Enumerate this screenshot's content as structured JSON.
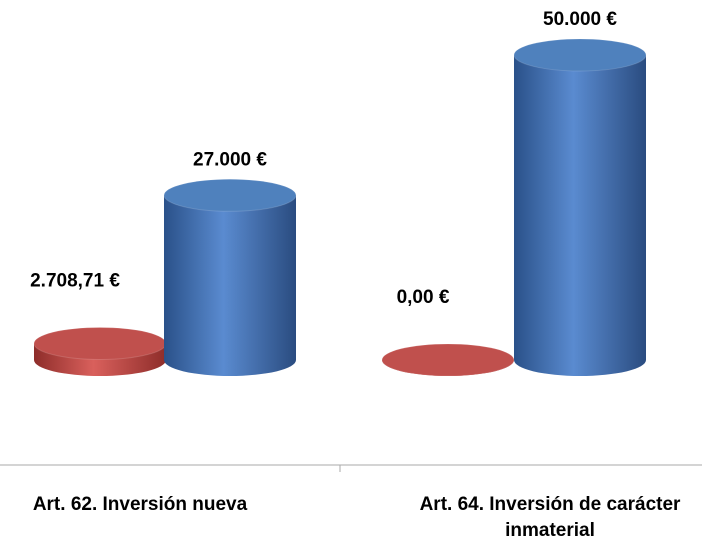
{
  "chart_data": {
    "type": "cylinder",
    "categories": [
      "Art. 62. Inversión nueva",
      "Art. 64. Inversión de carácter inmaterial"
    ],
    "series": [
      {
        "color": "#c0504d",
        "values": [
          2708.71,
          0
        ],
        "value_labels": [
          "2.708,71 €",
          "0,00 €"
        ]
      },
      {
        "color": "#4f81bd",
        "values": [
          27000,
          50000
        ],
        "value_labels": [
          "27.000 €",
          "50.000 €"
        ]
      }
    ]
  }
}
